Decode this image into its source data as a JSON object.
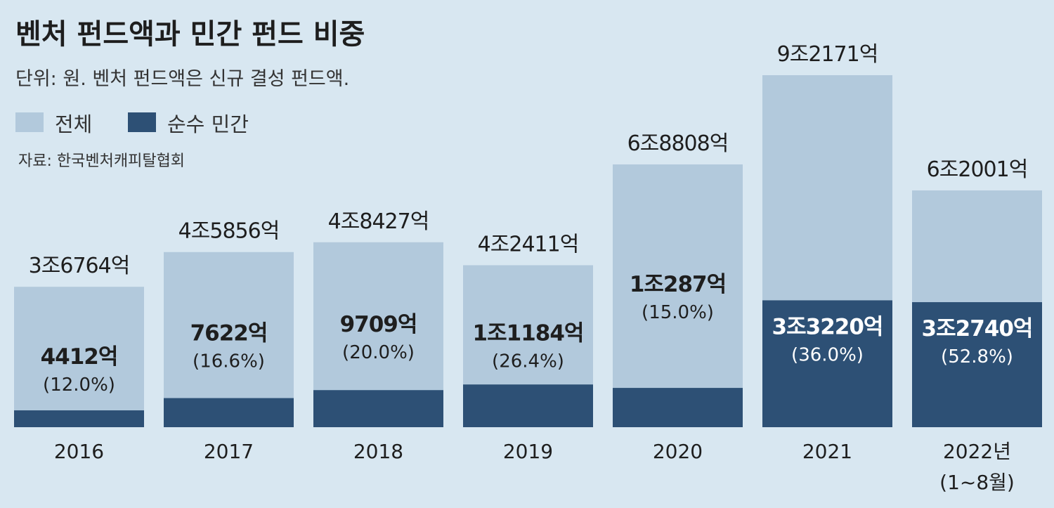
{
  "chart_data": {
    "type": "bar",
    "title": "벤처 펀드액과 민간 펀드 비중",
    "subtitle": "단위: 원. 벤처 펀드액은 신규 결성 펀드액.",
    "source": "자료: 한국벤처캐피탈협회",
    "legend": [
      {
        "name": "전체",
        "color": "#b2c9dc"
      },
      {
        "name": "순수 민간",
        "color": "#2d5075"
      }
    ],
    "categories": [
      "2016",
      "2017",
      "2018",
      "2019",
      "2020",
      "2021",
      "2022년"
    ],
    "category_notes": [
      "",
      "",
      "",
      "",
      "",
      "",
      "(1~8월)"
    ],
    "series": [
      {
        "name": "전체",
        "values": [
          36764,
          45856,
          48427,
          42411,
          68808,
          92171,
          62001
        ]
      },
      {
        "name": "순수 민간",
        "values": [
          4412,
          7622,
          9709,
          11184,
          10287,
          33220,
          32740
        ]
      }
    ],
    "total_labels": [
      "3조6764억",
      "4조5856억",
      "4조8427억",
      "4조2411억",
      "6조8808억",
      "9조2171억",
      "6조2001억"
    ],
    "private_labels": [
      "4412억",
      "7622억",
      "9709억",
      "1조1184억",
      "1조287억",
      "3조3220억",
      "3조2740억"
    ],
    "percent_labels": [
      "(12.0%)",
      "(16.6%)",
      "(20.0%)",
      "(26.4%)",
      "(15.0%)",
      "(36.0%)",
      "(52.8%)"
    ],
    "ylim": [
      0,
      92171
    ],
    "grid": false,
    "legend_position": "top-left"
  }
}
